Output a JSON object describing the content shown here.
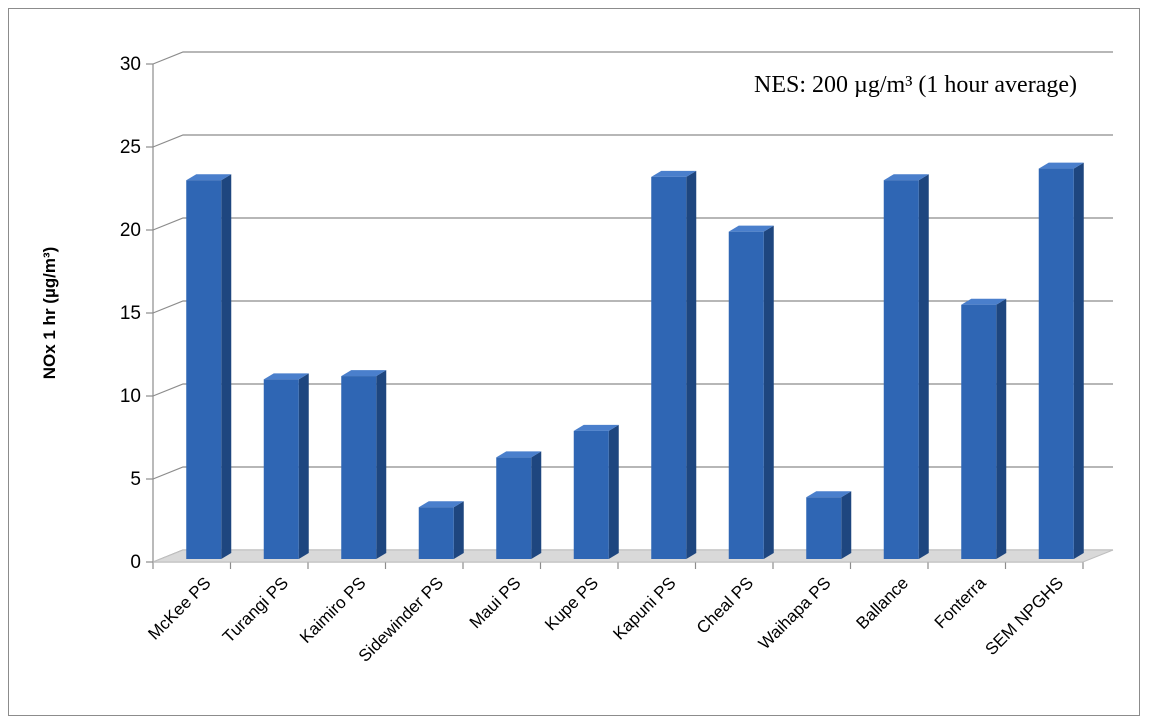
{
  "chart_data": {
    "type": "bar",
    "style": "3d-column",
    "categories": [
      "McKee PS",
      "Turangi PS",
      "Kaimiro PS",
      "Sidewinder PS",
      "Maui PS",
      "Kupe PS",
      "Kapuni PS",
      "Cheal PS",
      "Waihapa PS",
      "Ballance",
      "Fonterra",
      "SEM NPGHS"
    ],
    "values": [
      23.0,
      11.0,
      11.2,
      3.3,
      6.3,
      7.9,
      23.2,
      19.9,
      3.9,
      23.0,
      15.5,
      23.7
    ],
    "ylabel": "NOx 1 hr (µg/m³)",
    "xlabel": "",
    "ylim": [
      0,
      30
    ],
    "yticks": [
      0,
      5,
      10,
      15,
      20,
      25,
      30
    ],
    "grid": true,
    "legend": "none",
    "annotation": "NES: 200 µg/m³ (1 hour average)",
    "colors": {
      "bar_front": "#2f66b4",
      "bar_side": "#1e467f",
      "bar_top": "#4a7fcc",
      "gridline": "#8c8c8c",
      "floor": "#d9d9d9"
    }
  }
}
